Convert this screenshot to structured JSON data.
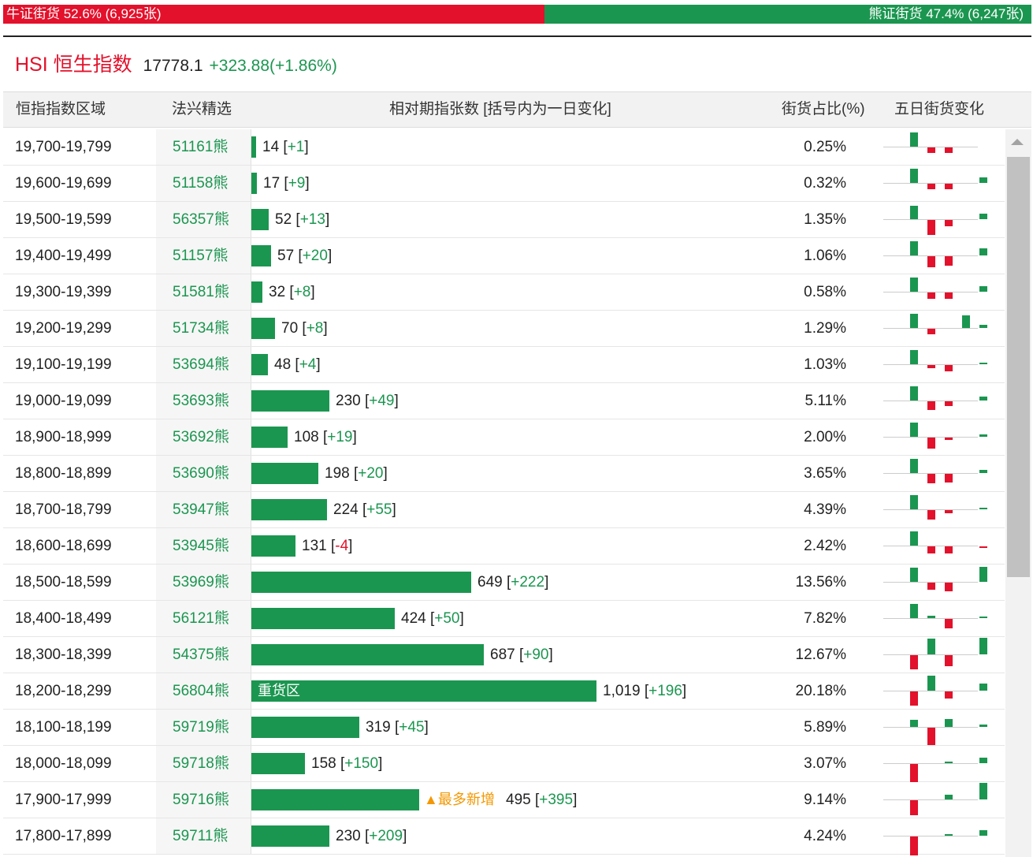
{
  "ratio": {
    "bull_label": "牛证街货 52.6% (6,925张)",
    "bull_share": 52.6,
    "bear_label": "熊证街货 47.4% (6,247张)",
    "bull_color": "#e3112b",
    "bear_color": "#1b9650"
  },
  "index": {
    "name": "HSI 恒生指数",
    "price": "17778.1",
    "change": "+323.88(+1.86%)"
  },
  "headers": {
    "range": "恒指指数区域",
    "code": "法兴精选",
    "qty": "相对期指张数 [括号内为一日变化]",
    "pct": "街货占比(%)",
    "spark": "五日街货变化"
  },
  "bar_max_value": 1019,
  "rows": [
    {
      "range": "19,700-19,799",
      "code": "51161熊",
      "qty": "14",
      "chg": "+1",
      "pct": "0.25%",
      "spark": [
        0.9,
        -0.35,
        -0.35,
        0,
        0
      ]
    },
    {
      "range": "19,600-19,699",
      "code": "51158熊",
      "qty": "17",
      "chg": "+9",
      "pct": "0.32%",
      "spark": [
        0.9,
        -0.35,
        -0.35,
        0,
        0.35
      ]
    },
    {
      "range": "19,500-19,599",
      "code": "56357熊",
      "qty": "52",
      "chg": "+13",
      "pct": "1.35%",
      "spark": [
        0.85,
        -0.95,
        -0.4,
        0,
        0.35
      ]
    },
    {
      "range": "19,400-19,499",
      "code": "51157熊",
      "qty": "57",
      "chg": "+20",
      "pct": "1.06%",
      "spark": [
        0.9,
        -0.7,
        -0.6,
        0,
        0.45
      ]
    },
    {
      "range": "19,300-19,399",
      "code": "51581熊",
      "qty": "32",
      "chg": "+8",
      "pct": "0.58%",
      "spark": [
        0.9,
        -0.4,
        -0.4,
        0,
        0.35
      ]
    },
    {
      "range": "19,200-19,299",
      "code": "51734熊",
      "qty": "70",
      "chg": "+8",
      "pct": "1.29%",
      "spark": [
        0.9,
        -0.35,
        0,
        0.8,
        0.2
      ]
    },
    {
      "range": "19,100-19,199",
      "code": "53694熊",
      "qty": "48",
      "chg": "+4",
      "pct": "1.03%",
      "spark": [
        0.9,
        -0.2,
        -0.4,
        0,
        0.1
      ]
    },
    {
      "range": "19,000-19,099",
      "code": "53693熊",
      "qty": "230",
      "chg": "+49",
      "pct": "5.11%",
      "spark": [
        0.9,
        -0.55,
        -0.3,
        0,
        0.25
      ]
    },
    {
      "range": "18,900-18,999",
      "code": "53692熊",
      "qty": "108",
      "chg": "+19",
      "pct": "2.00%",
      "spark": [
        0.9,
        -0.7,
        -0.15,
        0,
        0.15
      ]
    },
    {
      "range": "18,800-18,899",
      "code": "53690熊",
      "qty": "198",
      "chg": "+20",
      "pct": "3.65%",
      "spark": [
        0.9,
        -0.6,
        -0.55,
        0,
        0.2
      ]
    },
    {
      "range": "18,700-18,799",
      "code": "53947熊",
      "qty": "224",
      "chg": "+55",
      "pct": "4.39%",
      "spark": [
        0.9,
        -0.6,
        -0.2,
        0,
        0.1
      ]
    },
    {
      "range": "18,600-18,699",
      "code": "53945熊",
      "qty": "131",
      "chg": "-4",
      "pct": "2.42%",
      "spark": [
        0.9,
        -0.45,
        -0.45,
        0,
        -0.1
      ]
    },
    {
      "range": "18,500-18,599",
      "code": "53969熊",
      "qty": "649",
      "chg": "+222",
      "pct": "13.56%",
      "spark": [
        0.9,
        -0.45,
        -0.55,
        0,
        0.95
      ]
    },
    {
      "range": "18,400-18,499",
      "code": "56121熊",
      "qty": "424",
      "chg": "+50",
      "pct": "7.82%",
      "spark": [
        0.9,
        0.15,
        -0.6,
        0,
        0.1
      ]
    },
    {
      "range": "18,300-18,399",
      "code": "54375熊",
      "qty": "687",
      "chg": "+90",
      "pct": "12.67%",
      "spark": [
        -0.9,
        1.0,
        -0.7,
        0,
        1.05
      ]
    },
    {
      "range": "18,200-18,299",
      "code": "56804熊",
      "qty": "1,019",
      "qty_value": 1019,
      "chg": "+196",
      "pct": "20.18%",
      "badge": "重货区",
      "spark": [
        -0.9,
        0.95,
        -0.45,
        0,
        0.45
      ]
    },
    {
      "range": "18,100-18,199",
      "code": "59719熊",
      "qty": "319",
      "chg": "+45",
      "pct": "5.89%",
      "spark": [
        0.45,
        -1.1,
        0.5,
        0,
        0.15
      ]
    },
    {
      "range": "18,000-18,099",
      "code": "59718熊",
      "qty": "158",
      "chg": "+150",
      "pct": "3.07%",
      "spark": [
        -1.2,
        0,
        0.1,
        0,
        0.35
      ]
    },
    {
      "range": "17,900-17,999",
      "code": "59716熊",
      "qty": "495",
      "chg": "+395",
      "pct": "9.14%",
      "badge_after": "▲最多新增",
      "spark": [
        -0.95,
        0,
        0.3,
        0,
        1.05
      ]
    },
    {
      "range": "17,800-17,899",
      "code": "59711熊",
      "qty": "230",
      "chg": "+209",
      "pct": "4.24%",
      "spark": [
        -1.2,
        0,
        0.1,
        0,
        0.35
      ]
    }
  ]
}
